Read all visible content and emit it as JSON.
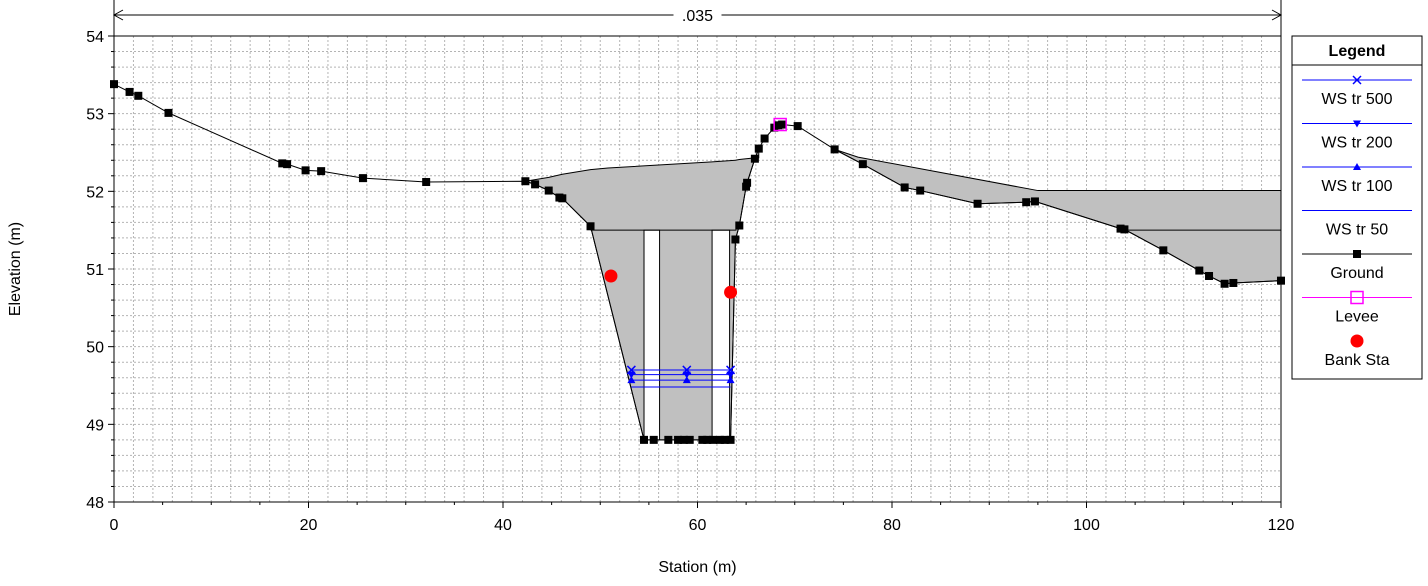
{
  "chart_data": {
    "type": "line",
    "xlabel": "Station (m)",
    "ylabel": "Elevation (m)",
    "xlim": [
      0,
      120
    ],
    "ylim": [
      48,
      54
    ],
    "x_ticks": [
      0,
      20,
      40,
      60,
      80,
      100,
      120
    ],
    "y_ticks": [
      48,
      49,
      50,
      51,
      52,
      53,
      54
    ],
    "grid": true,
    "legend_position": "right",
    "annotation": {
      "text": ".035",
      "x_from": 0,
      "x_to": 120
    },
    "legend": {
      "title": "Legend",
      "entries": [
        "WS tr 500",
        "WS tr 200",
        "WS tr 100",
        "WS tr 50",
        "Ground",
        "Levee",
        "Bank Sta"
      ]
    },
    "colors": {
      "ws": "#0000ff",
      "ground": "#000000",
      "levee": "#ff00ff",
      "bank": "#ff0000",
      "fill": "#c0c0c0",
      "grid": "#b4b4b4"
    },
    "series": [
      {
        "name": "Ground",
        "x": [
          0,
          1.6,
          2.5,
          5.6,
          17.3,
          17.8,
          19.7,
          21.3,
          25.6,
          32.1,
          42.3,
          43.3,
          44.7,
          45.8,
          46.1,
          49,
          54.5,
          55.5,
          57,
          58,
          58.6,
          59.2,
          60.5,
          61,
          61.6,
          62.3,
          62.8,
          63.4,
          63.9,
          64.3,
          65,
          65.1,
          65.9,
          66.3,
          66.9,
          67.9,
          68.3,
          68.7,
          70.3,
          74.1,
          77,
          81.3,
          82.9,
          88.8,
          93.8,
          94.7,
          103.5,
          103.9,
          107.9,
          111.6,
          112.6,
          114.2,
          115.1,
          120
        ],
        "y": [
          53.38,
          53.28,
          53.23,
          53.01,
          52.36,
          52.35,
          52.27,
          52.26,
          52.17,
          52.12,
          52.13,
          52.09,
          52.01,
          51.92,
          51.91,
          51.55,
          48.8,
          48.8,
          48.8,
          48.8,
          48.8,
          48.8,
          48.8,
          48.8,
          48.8,
          48.8,
          48.8,
          48.8,
          51.38,
          51.56,
          52.06,
          52.11,
          52.42,
          52.55,
          52.68,
          52.82,
          52.85,
          52.86,
          52.84,
          52.54,
          52.35,
          52.05,
          52.01,
          51.84,
          51.86,
          51.87,
          51.52,
          51.51,
          51.24,
          50.98,
          50.91,
          50.81,
          50.82,
          50.85
        ]
      },
      {
        "name": "WS tr 500",
        "level": 49.7,
        "segments": [
          [
            53.2,
            63.4
          ]
        ],
        "markers_x": [
          53.2,
          58.9,
          63.4
        ]
      },
      {
        "name": "WS tr 200",
        "level": 49.64,
        "segments": [
          [
            53.2,
            63.4
          ]
        ],
        "markers_x": [
          53.2,
          58.9,
          63.4
        ]
      },
      {
        "name": "WS tr 100",
        "level": 49.57,
        "segments": [
          [
            53.2,
            63.4
          ]
        ],
        "markers_x": [
          53.2,
          58.9,
          63.4
        ]
      },
      {
        "name": "WS tr 50",
        "level": 49.48,
        "segments": [
          [
            53.2,
            63.4
          ]
        ],
        "markers_x": []
      },
      {
        "name": "Levee",
        "points": [
          [
            68.5,
            52.86
          ]
        ]
      },
      {
        "name": "Bank Sta",
        "points": [
          [
            51.1,
            50.91
          ],
          [
            63.4,
            50.7
          ]
        ]
      }
    ],
    "flow_areas": [
      {
        "x": [
          42.3,
          44.7,
          46.1,
          49,
          50.8,
          61.5,
          63.9,
          64.3,
          65,
          65.9,
          66.3
        ],
        "y_top": [
          52.13,
          52.18,
          52.22,
          52.28,
          52.3,
          52.38,
          52.4,
          52.41,
          52.42,
          52.43,
          52.43
        ]
      },
      {
        "x": [
          74.1,
          76.5,
          95,
          120
        ],
        "y_top": [
          52.54,
          52.44,
          52.01,
          52.01
        ]
      }
    ],
    "obstructions": [
      {
        "x_from": 54.5,
        "x_to": 56.1,
        "y_top": 51.5
      },
      {
        "x_from": 61.5,
        "x_to": 63.3,
        "y_top": 51.5
      }
    ]
  }
}
